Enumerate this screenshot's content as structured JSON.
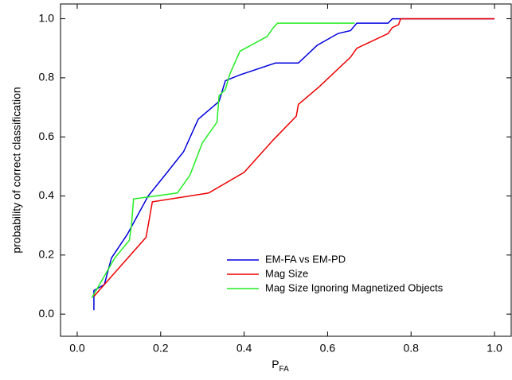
{
  "chart_data": {
    "type": "line",
    "x_label": "P",
    "x_label_subscript": "FA",
    "y_label": "probability of correct classification",
    "xlim": [
      -0.04,
      1.04
    ],
    "ylim": [
      -0.075,
      1.05
    ],
    "xticks": [
      {
        "value": 0,
        "label": "0.0"
      },
      0.2,
      0.4,
      0.6,
      0.8,
      {
        "value": 1,
        "label": "1.0"
      }
    ],
    "yticks": [
      {
        "value": 0,
        "label": "0.0"
      },
      0.2,
      0.4,
      0.6,
      0.8,
      {
        "value": 1,
        "label": "1.0"
      }
    ],
    "series": [
      {
        "name": "EM-FA vs EM-PD",
        "color": "#0000dd",
        "x": [
          0.04,
          0.04,
          0.065,
          0.082,
          0.12,
          0.17,
          0.21,
          0.255,
          0.29,
          0.34,
          0.355,
          0.39,
          0.475,
          0.53,
          0.575,
          0.625,
          0.655,
          0.67,
          0.745,
          0.755,
          1.0
        ],
        "values": [
          0.013,
          0.08,
          0.1,
          0.19,
          0.27,
          0.4,
          0.47,
          0.55,
          0.66,
          0.72,
          0.79,
          0.81,
          0.85,
          0.85,
          0.91,
          0.95,
          0.96,
          0.985,
          0.985,
          1.0,
          1.0
        ]
      },
      {
        "name": "Mag Size",
        "color": "#ee0000",
        "x": [
          0.04,
          0.165,
          0.18,
          0.315,
          0.4,
          0.47,
          0.525,
          0.53,
          0.58,
          0.655,
          0.67,
          0.745,
          0.755,
          0.77,
          0.775,
          1.0
        ],
        "values": [
          0.06,
          0.26,
          0.38,
          0.41,
          0.48,
          0.59,
          0.67,
          0.71,
          0.77,
          0.87,
          0.9,
          0.95,
          0.97,
          0.98,
          1.0,
          1.0
        ]
      },
      {
        "name": "Mag Size Ignoring Magnetized Objects",
        "color": "#22ee22",
        "x": [
          0.035,
          0.09,
          0.125,
          0.13,
          0.135,
          0.24,
          0.27,
          0.3,
          0.335,
          0.34,
          0.355,
          0.365,
          0.39,
          0.455,
          0.47,
          0.48,
          0.665
        ],
        "values": [
          0.055,
          0.19,
          0.25,
          0.3,
          0.39,
          0.41,
          0.47,
          0.58,
          0.65,
          0.74,
          0.76,
          0.81,
          0.89,
          0.94,
          0.97,
          0.985,
          0.985
        ]
      }
    ]
  }
}
